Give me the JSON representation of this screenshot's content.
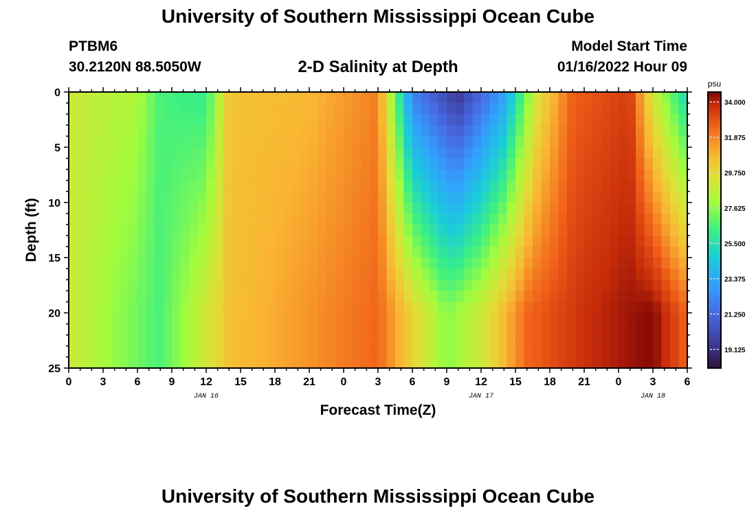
{
  "header": {
    "title": "University of Southern Mississippi Ocean Cube",
    "station_id": "PTBM6",
    "coordinates": "30.2120N  88.5050W",
    "plot_title": "2-D Salinity at Depth",
    "model_start_label": "Model Start Time",
    "model_start_value": "01/16/2022 Hour 09",
    "footer_title": "University of Southern Mississippi Ocean Cube"
  },
  "chart_data": {
    "type": "heatmap",
    "title": "2-D Salinity at Depth",
    "xlabel": "Forecast Time(Z)",
    "ylabel": "Depth (ft)",
    "x_range_hours": [
      0,
      54
    ],
    "y_range_ft": [
      0,
      25
    ],
    "x_ticks": [
      "0",
      "3",
      "6",
      "9",
      "12",
      "15",
      "18",
      "21",
      "0",
      "3",
      "6",
      "9",
      "12",
      "15",
      "18",
      "21",
      "0",
      "3",
      "6"
    ],
    "day_labels": [
      {
        "label": "JAN 16",
        "at_hour": 12
      },
      {
        "label": "JAN 17",
        "at_hour": 36
      },
      {
        "label": "JAN 18",
        "at_hour": 51
      }
    ],
    "y_ticks": [
      0,
      5,
      10,
      15,
      20,
      25
    ],
    "colorbar": {
      "unit": "psu",
      "min": 18.0,
      "max": 34.6,
      "ticks": [
        "34.000",
        "31.875",
        "29.750",
        "27.625",
        "25.500",
        "23.375",
        "21.250",
        "19.125"
      ]
    },
    "salinity_profile_surface": [
      {
        "hour": 0,
        "psu": 29.0
      },
      {
        "hour": 6,
        "psu": 28.2
      },
      {
        "hour": 8,
        "psu": 26.5
      },
      {
        "hour": 12,
        "psu": 26.0
      },
      {
        "hour": 14,
        "psu": 30.5
      },
      {
        "hour": 21,
        "psu": 30.8
      },
      {
        "hour": 27,
        "psu": 32.0
      },
      {
        "hour": 28.5,
        "psu": 27.0
      },
      {
        "hour": 30,
        "psu": 22.0
      },
      {
        "hour": 34,
        "psu": 19.3
      },
      {
        "hour": 38,
        "psu": 23.0
      },
      {
        "hour": 41,
        "psu": 29.5
      },
      {
        "hour": 44,
        "psu": 32.6
      },
      {
        "hour": 49,
        "psu": 33.4
      },
      {
        "hour": 51,
        "psu": 29.0
      },
      {
        "hour": 54,
        "psu": 25.0
      }
    ],
    "salinity_profile_20ft": [
      {
        "hour": 0,
        "psu": 29.0
      },
      {
        "hour": 8,
        "psu": 26.5
      },
      {
        "hour": 14,
        "psu": 30.5
      },
      {
        "hour": 27,
        "psu": 32.5
      },
      {
        "hour": 33,
        "psu": 27.5
      },
      {
        "hour": 36,
        "psu": 29.0
      },
      {
        "hour": 40,
        "psu": 32.5
      },
      {
        "hour": 45,
        "psu": 33.7
      },
      {
        "hour": 51,
        "psu": 34.5
      },
      {
        "hour": 54,
        "psu": 32.5
      }
    ]
  }
}
